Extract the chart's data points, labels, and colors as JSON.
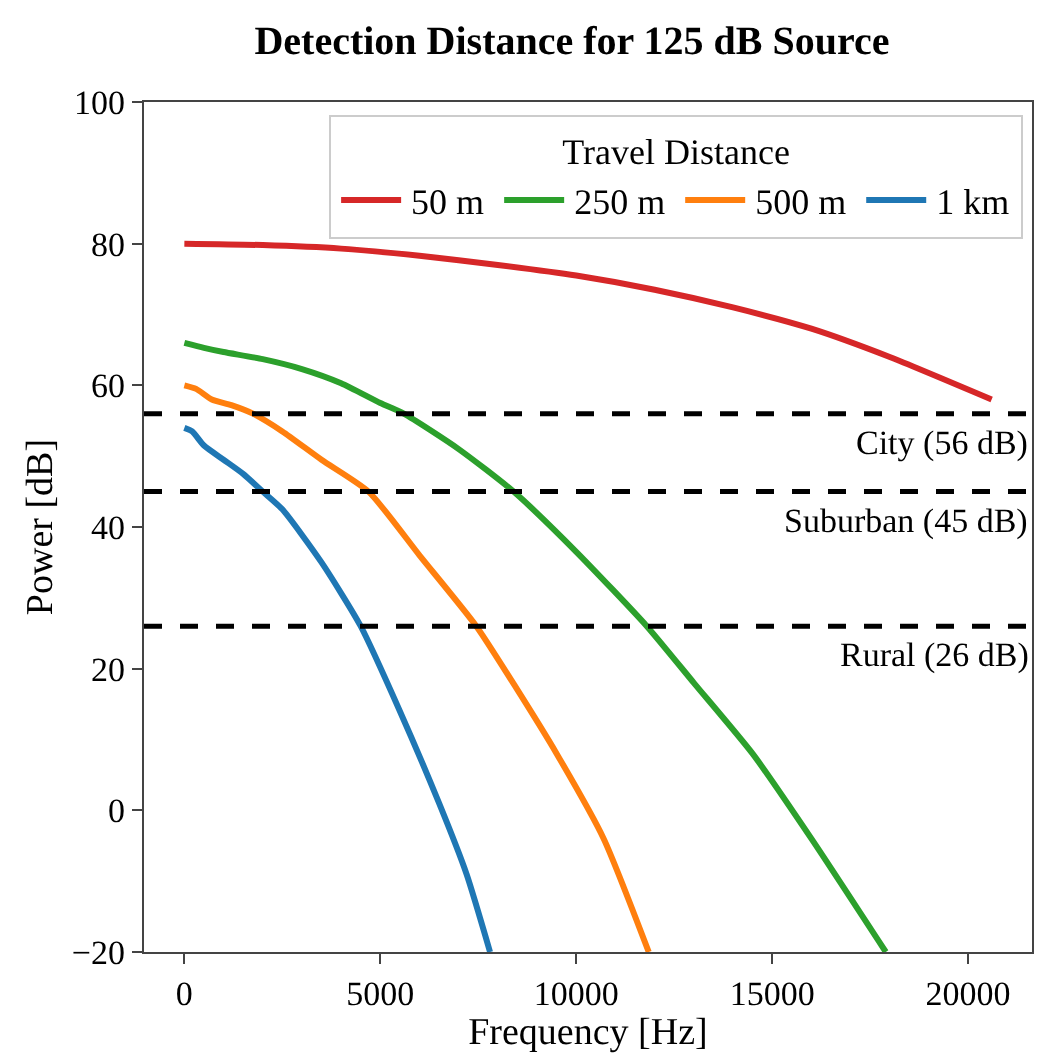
{
  "chart_data": {
    "type": "line",
    "title": "Detection Distance for 125 dB Source",
    "xlabel": "Frequency [Hz]",
    "ylabel": "Power [dB]",
    "legend_title": "Travel Distance",
    "legend": "top right",
    "xlim": [
      -1030,
      21630
    ],
    "ylim": [
      -20,
      100
    ],
    "xticks": [
      0,
      5000,
      10000,
      15000,
      20000
    ],
    "yticks": [
      {
        "value": -20,
        "label": "−20"
      },
      0,
      20,
      40,
      60,
      80,
      100
    ],
    "line_style": "solid",
    "series": [
      {
        "name": "50 m",
        "color": "#d62728",
        "x": [
          0,
          2000,
          4000,
          6000,
          8000,
          10000,
          12000,
          14000,
          16000,
          18000,
          20600
        ],
        "values": [
          80,
          79.8,
          79.3,
          78.3,
          77,
          75.5,
          73.5,
          71,
          68,
          64,
          58
        ]
      },
      {
        "name": "250 m",
        "color": "#2ca02c",
        "x": [
          0,
          500,
          1000,
          2000,
          3000,
          4000,
          5000,
          5600,
          7000,
          8400,
          10000,
          11800,
          13000,
          14500,
          16000,
          17900
        ],
        "values": [
          66,
          65.3,
          64.7,
          63.7,
          62.3,
          60.3,
          57.5,
          56,
          51,
          45,
          36.5,
          26,
          18,
          8,
          -4,
          -20
        ]
      },
      {
        "name": "500 m",
        "color": "#ff7f0e",
        "x": [
          0,
          300,
          700,
          1200,
          1750,
          2500,
          3500,
          4700,
          6000,
          7450,
          8500,
          9500,
          10700,
          11850
        ],
        "values": [
          60,
          59.5,
          58,
          57.2,
          56,
          53.5,
          49.5,
          45,
          36,
          26,
          17,
          8,
          -4,
          -20
        ]
      },
      {
        "name": "1 km",
        "color": "#1f77b4",
        "x": [
          0,
          200,
          500,
          1000,
          1500,
          2000,
          2500,
          3500,
          4500,
          5500,
          6500,
          7200,
          7800
        ],
        "values": [
          54,
          53.5,
          51.5,
          49.5,
          47.5,
          45,
          42.5,
          35,
          26,
          14,
          1,
          -9,
          -20
        ]
      }
    ],
    "ref_lines": [
      {
        "axis": "y",
        "value": 56,
        "label": "City (56 dB)",
        "color": "#000000",
        "line_style": "dashed"
      },
      {
        "axis": "y",
        "value": 45,
        "label": "Suburban (45 dB)",
        "color": "#000000",
        "line_style": "dashed"
      },
      {
        "axis": "y",
        "value": 26,
        "label": "Rural (26 dB)",
        "color": "#000000",
        "line_style": "dashed"
      }
    ]
  }
}
